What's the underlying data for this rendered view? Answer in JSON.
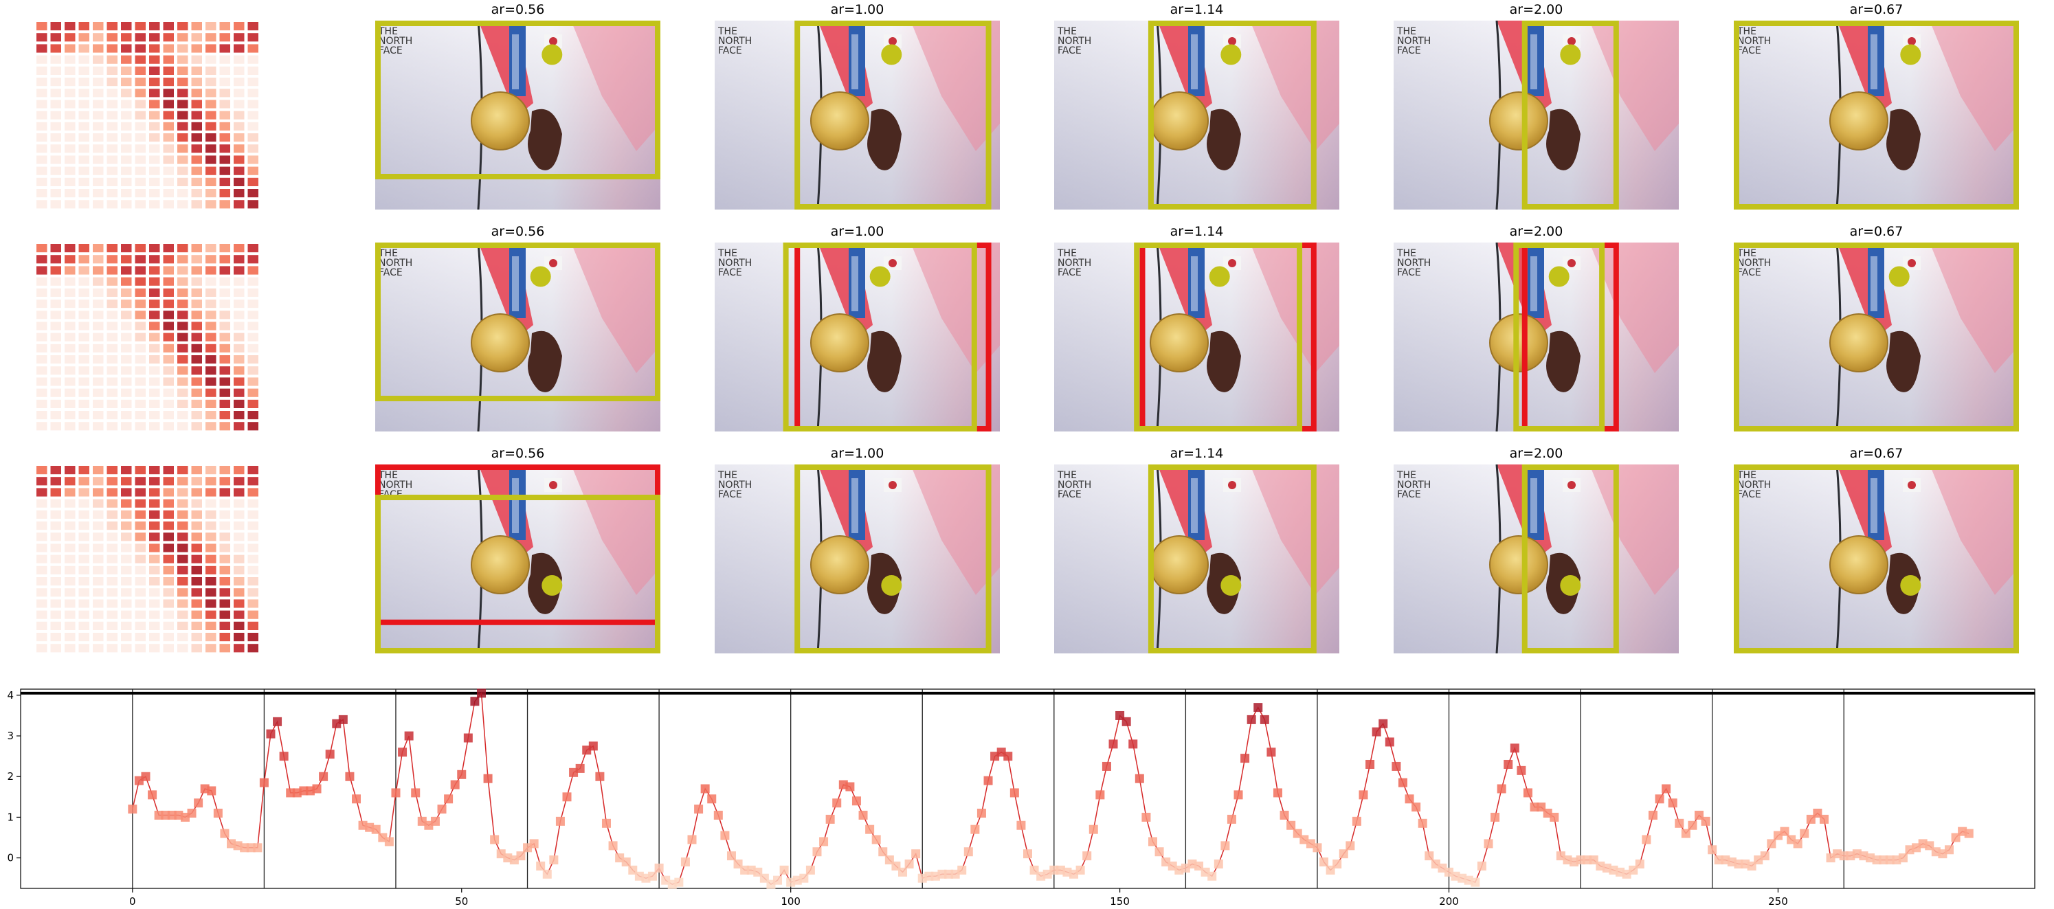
{
  "panel_rows": [
    {
      "panels": [
        {
          "title": "ar=0.56",
          "frame_color": "#c2c21a",
          "marker": [
            0.62,
            0.18
          ],
          "boxes": [
            {
              "color": "#c2c21a",
              "x0": 0.0,
              "y0": 0.0,
              "x1": 1.0,
              "y1": 0.84
            }
          ]
        },
        {
          "title": "ar=1.00",
          "frame_color": "#c2c21a",
          "marker": [
            0.62,
            0.18
          ],
          "boxes": [
            {
              "color": "#c2c21a",
              "x0": 0.28,
              "y0": 0.0,
              "x1": 0.97,
              "y1": 1.0
            }
          ]
        },
        {
          "title": "ar=1.14",
          "frame_color": "#c2c21a",
          "marker": [
            0.62,
            0.18
          ],
          "boxes": [
            {
              "color": "#c2c21a",
              "x0": 0.33,
              "y0": 0.0,
              "x1": 0.92,
              "y1": 1.0
            }
          ]
        },
        {
          "title": "ar=2.00",
          "frame_color": "#c2c21a",
          "marker": [
            0.62,
            0.18
          ],
          "boxes": [
            {
              "color": "#c2c21a",
              "x0": 0.45,
              "y0": 0.0,
              "x1": 0.79,
              "y1": 1.0
            }
          ]
        },
        {
          "title": "ar=0.67",
          "frame_color": "#c2c21a",
          "marker": [
            0.62,
            0.18
          ],
          "boxes": [
            {
              "color": "#c2c21a",
              "x0": 0.0,
              "y0": 0.0,
              "x1": 1.0,
              "y1": 1.0
            }
          ]
        }
      ]
    },
    {
      "panels": [
        {
          "title": "ar=0.56",
          "marker": [
            0.58,
            0.18
          ],
          "boxes": [
            {
              "color": "#c2c21a",
              "x0": 0.0,
              "y0": 0.0,
              "x1": 1.0,
              "y1": 0.84
            }
          ]
        },
        {
          "title": "ar=1.00",
          "marker": [
            0.58,
            0.18
          ],
          "boxes": [
            {
              "color": "#e8151b",
              "x0": 0.28,
              "y0": 0.0,
              "x1": 0.97,
              "y1": 1.0
            },
            {
              "color": "#c2c21a",
              "x0": 0.24,
              "y0": 0.0,
              "x1": 0.92,
              "y1": 1.0
            }
          ]
        },
        {
          "title": "ar=1.14",
          "marker": [
            0.58,
            0.18
          ],
          "boxes": [
            {
              "color": "#e8151b",
              "x0": 0.3,
              "y0": 0.0,
              "x1": 0.92,
              "y1": 1.0
            },
            {
              "color": "#c2c21a",
              "x0": 0.28,
              "y0": 0.0,
              "x1": 0.87,
              "y1": 1.0
            }
          ]
        },
        {
          "title": "ar=2.00",
          "marker": [
            0.58,
            0.18
          ],
          "boxes": [
            {
              "color": "#e8151b",
              "x0": 0.45,
              "y0": 0.0,
              "x1": 0.79,
              "y1": 1.0
            },
            {
              "color": "#c2c21a",
              "x0": 0.42,
              "y0": 0.0,
              "x1": 0.74,
              "y1": 1.0
            }
          ]
        },
        {
          "title": "ar=0.67",
          "marker": [
            0.58,
            0.18
          ],
          "boxes": [
            {
              "color": "#c2c21a",
              "x0": 0.0,
              "y0": 0.0,
              "x1": 1.0,
              "y1": 1.0
            }
          ]
        }
      ]
    },
    {
      "panels": [
        {
          "title": "ar=0.56",
          "marker": [
            0.62,
            0.64
          ],
          "boxes": [
            {
              "color": "#e8151b",
              "x0": 0.0,
              "y0": 0.0,
              "x1": 1.0,
              "y1": 0.85
            },
            {
              "color": "#c2c21a",
              "x0": 0.0,
              "y0": 0.16,
              "x1": 1.0,
              "y1": 1.0
            }
          ]
        },
        {
          "title": "ar=1.00",
          "marker": [
            0.62,
            0.64
          ],
          "boxes": [
            {
              "color": "#c2c21a",
              "x0": 0.28,
              "y0": 0.0,
              "x1": 0.97,
              "y1": 1.0
            }
          ]
        },
        {
          "title": "ar=1.14",
          "marker": [
            0.62,
            0.64
          ],
          "boxes": [
            {
              "color": "#c2c21a",
              "x0": 0.33,
              "y0": 0.0,
              "x1": 0.92,
              "y1": 1.0
            }
          ]
        },
        {
          "title": "ar=2.00",
          "marker": [
            0.62,
            0.64
          ],
          "boxes": [
            {
              "color": "#c2c21a",
              "x0": 0.45,
              "y0": 0.0,
              "x1": 0.79,
              "y1": 1.0
            }
          ]
        },
        {
          "title": "ar=0.67",
          "marker": [
            0.62,
            0.64
          ],
          "boxes": [
            {
              "color": "#c2c21a",
              "x0": 0.0,
              "y0": 0.0,
              "x1": 1.0,
              "y1": 1.0
            }
          ]
        }
      ]
    }
  ],
  "chart_data": {
    "type": "line",
    "title": "",
    "xlabel": "",
    "ylabel": "",
    "xlim": [
      -17,
      289
    ],
    "ylim": [
      -0.75,
      4.15
    ],
    "x_ticks": [
      0,
      50,
      100,
      150,
      200,
      250
    ],
    "y_ticks": [
      0,
      1,
      2,
      3,
      4
    ],
    "segment_boundaries": [
      0,
      20,
      40,
      60,
      80,
      100,
      120,
      140,
      160,
      180,
      200,
      220,
      240,
      260
    ],
    "threshold_line": 4.05,
    "line_color": "#d62828",
    "x": [
      0,
      1,
      2,
      3,
      4,
      5,
      6,
      7,
      8,
      9,
      10,
      11,
      12,
      13,
      14,
      15,
      16,
      17,
      18,
      19,
      20,
      21,
      22,
      23,
      24,
      25,
      26,
      27,
      28,
      29,
      30,
      31,
      32,
      33,
      34,
      35,
      36,
      37,
      38,
      39,
      40,
      41,
      42,
      43,
      44,
      45,
      46,
      47,
      48,
      49,
      50,
      51,
      52,
      53,
      54,
      55,
      56,
      57,
      58,
      59,
      60,
      61,
      62,
      63,
      64,
      65,
      66,
      67,
      68,
      69,
      70,
      71,
      72,
      73,
      74,
      75,
      76,
      77,
      78,
      79,
      80,
      81,
      82,
      83,
      84,
      85,
      86,
      87,
      88,
      89,
      90,
      91,
      92,
      93,
      94,
      95,
      96,
      97,
      98,
      99,
      100,
      101,
      102,
      103,
      104,
      105,
      106,
      107,
      108,
      109,
      110,
      111,
      112,
      113,
      114,
      115,
      116,
      117,
      118,
      119,
      120,
      121,
      122,
      123,
      124,
      125,
      126,
      127,
      128,
      129,
      130,
      131,
      132,
      133,
      134,
      135,
      136,
      137,
      138,
      139,
      140,
      141,
      142,
      143,
      144,
      145,
      146,
      147,
      148,
      149,
      150,
      151,
      152,
      153,
      154,
      155,
      156,
      157,
      158,
      159,
      160,
      161,
      162,
      163,
      164,
      165,
      166,
      167,
      168,
      169,
      170,
      171,
      172,
      173,
      174,
      175,
      176,
      177,
      178,
      179,
      180,
      181,
      182,
      183,
      184,
      185,
      186,
      187,
      188,
      189,
      190,
      191,
      192,
      193,
      194,
      195,
      196,
      197,
      198,
      199,
      200,
      201,
      202,
      203,
      204,
      205,
      206,
      207,
      208,
      209,
      210,
      211,
      212,
      213,
      214,
      215,
      216,
      217,
      218,
      219,
      220,
      221,
      222,
      223,
      224,
      225,
      226,
      227,
      228,
      229,
      230,
      231,
      232,
      233,
      234,
      235,
      236,
      237,
      238,
      239,
      240,
      241,
      242,
      243,
      244,
      245,
      246,
      247,
      248,
      249,
      250,
      251,
      252,
      253,
      254,
      255,
      256,
      257,
      258,
      259,
      260,
      261,
      262,
      263,
      264,
      265,
      266,
      267,
      268,
      269,
      270,
      271,
      272,
      273,
      274,
      275,
      276,
      277,
      278,
      279
    ],
    "y": [
      1.2,
      1.9,
      2.0,
      1.55,
      1.05,
      1.05,
      1.05,
      1.05,
      1.0,
      1.1,
      1.35,
      1.7,
      1.65,
      1.1,
      0.6,
      0.35,
      0.3,
      0.25,
      0.25,
      0.25,
      1.85,
      3.05,
      3.35,
      2.5,
      1.6,
      1.6,
      1.65,
      1.65,
      1.7,
      2.0,
      2.55,
      3.3,
      3.4,
      2.0,
      1.45,
      0.8,
      0.75,
      0.7,
      0.5,
      0.4,
      1.6,
      2.6,
      3.0,
      1.6,
      0.9,
      0.8,
      0.9,
      1.2,
      1.45,
      1.8,
      2.05,
      2.95,
      3.85,
      4.05,
      1.95,
      0.45,
      0.1,
      0.0,
      -0.05,
      0.05,
      0.25,
      0.35,
      -0.2,
      -0.4,
      -0.05,
      0.9,
      1.5,
      2.1,
      2.2,
      2.65,
      2.75,
      2.0,
      0.85,
      0.3,
      0.0,
      -0.1,
      -0.3,
      -0.45,
      -0.5,
      -0.45,
      -0.25,
      -0.55,
      -0.65,
      -0.6,
      -0.1,
      0.45,
      1.2,
      1.7,
      1.45,
      1.05,
      0.55,
      0.05,
      -0.15,
      -0.3,
      -0.3,
      -0.35,
      -0.5,
      -0.65,
      -0.55,
      -0.3,
      -0.6,
      -0.55,
      -0.5,
      -0.3,
      0.15,
      0.4,
      0.95,
      1.35,
      1.8,
      1.75,
      1.4,
      1.05,
      0.7,
      0.45,
      0.15,
      -0.05,
      -0.2,
      -0.35,
      -0.15,
      0.1,
      -0.5,
      -0.45,
      -0.45,
      -0.4,
      -0.4,
      -0.4,
      -0.3,
      0.15,
      0.7,
      1.1,
      1.9,
      2.5,
      2.6,
      2.5,
      1.6,
      0.8,
      0.1,
      -0.3,
      -0.45,
      -0.4,
      -0.3,
      -0.3,
      -0.35,
      -0.4,
      -0.3,
      0.05,
      0.7,
      1.55,
      2.25,
      2.8,
      3.5,
      3.35,
      2.8,
      1.95,
      1.0,
      0.4,
      0.15,
      -0.1,
      -0.2,
      -0.3,
      -0.25,
      -0.15,
      -0.2,
      -0.35,
      -0.45,
      -0.15,
      0.3,
      0.95,
      1.55,
      2.45,
      3.4,
      3.7,
      3.4,
      2.6,
      1.6,
      1.05,
      0.8,
      0.6,
      0.45,
      0.35,
      0.25,
      -0.1,
      -0.3,
      -0.15,
      0.1,
      0.3,
      0.9,
      1.55,
      2.3,
      3.1,
      3.3,
      2.85,
      2.25,
      1.85,
      1.45,
      1.25,
      0.85,
      0.05,
      -0.15,
      -0.25,
      -0.35,
      -0.45,
      -0.5,
      -0.55,
      -0.6,
      -0.2,
      0.35,
      1.0,
      1.7,
      2.3,
      2.7,
      2.15,
      1.6,
      1.25,
      1.25,
      1.1,
      1.0,
      0.05,
      -0.05,
      -0.1,
      -0.05,
      -0.05,
      -0.05,
      -0.2,
      -0.25,
      -0.3,
      -0.35,
      -0.4,
      -0.3,
      -0.15,
      0.45,
      1.05,
      1.45,
      1.7,
      1.35,
      0.85,
      0.6,
      0.8,
      1.05,
      0.9,
      0.2,
      -0.05,
      -0.05,
      -0.1,
      -0.15,
      -0.15,
      -0.2,
      -0.05,
      0.05,
      0.35,
      0.55,
      0.65,
      0.45,
      0.35,
      0.6,
      0.95,
      1.1,
      0.95,
      0.0,
      0.1,
      0.05,
      0.05,
      0.1,
      0.05,
      0.0,
      -0.05,
      -0.05,
      -0.05,
      -0.05,
      0.0,
      0.2,
      0.25,
      0.35,
      0.3,
      0.15,
      0.1,
      0.2,
      0.5,
      0.65,
      0.6
    ]
  }
}
